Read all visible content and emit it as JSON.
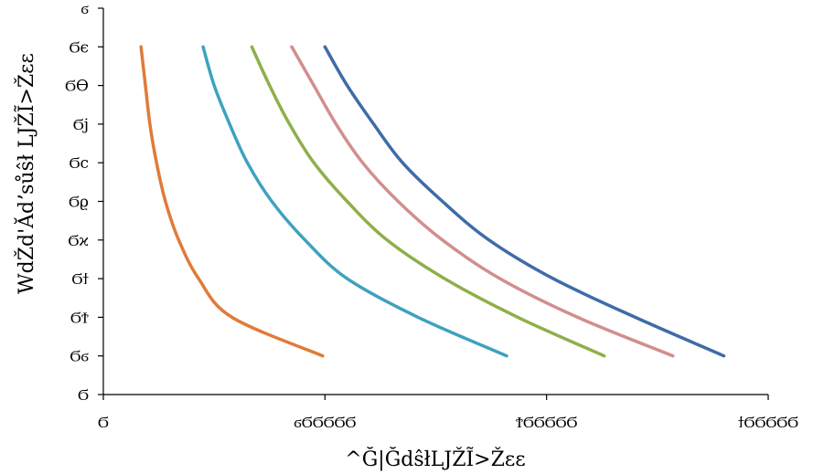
{
  "chart_data": {
    "type": "line",
    "xlabel": "^Ğ|ĞdŝłLJŽĨ>Žɛɛ",
    "ylabel": "WdŽd'Ădʼsůŝł LJŽĨ>Žɛɛ",
    "xlim": [
      0,
      3
    ],
    "ylim": [
      0,
      1
    ],
    "grid": false,
    "legend": "none",
    "x_tick_values": [
      0,
      1,
      2,
      3
    ],
    "x_tick_labels": [
      "Ϭ",
      "ϭϬϬϬϬϬ",
      "ϮϬϬϬϬϬ",
      "ϯϬϬϬϬϬ"
    ],
    "y_tick_values": [
      0,
      0.1,
      0.2,
      0.3,
      0.4,
      0.5,
      0.6,
      0.7,
      0.8,
      0.9,
      1.0
    ],
    "y_tick_labels": [
      "Ϭ",
      "Ϭϭ",
      "ϬϮ",
      "Ϭϯ",
      "Ϭϰ",
      "Ϭϱ",
      "Ϭϲ",
      "Ϭϳ",
      "Ϭϴ",
      "Ϭϵ",
      "ϭ"
    ],
    "series": [
      {
        "color": "#E07B39",
        "points": [
          [
            0.17,
            0.9
          ],
          [
            0.19,
            0.8
          ],
          [
            0.21,
            0.7
          ],
          [
            0.24,
            0.6
          ],
          [
            0.28,
            0.5
          ],
          [
            0.34,
            0.4
          ],
          [
            0.43,
            0.3
          ],
          [
            0.58,
            0.2
          ],
          [
            0.99,
            0.1
          ]
        ]
      },
      {
        "color": "#3EA2BF",
        "points": [
          [
            0.45,
            0.9
          ],
          [
            0.5,
            0.8
          ],
          [
            0.57,
            0.7
          ],
          [
            0.65,
            0.6
          ],
          [
            0.76,
            0.5
          ],
          [
            0.91,
            0.4
          ],
          [
            1.1,
            0.3
          ],
          [
            1.42,
            0.2
          ],
          [
            1.82,
            0.1
          ]
        ]
      },
      {
        "color": "#8FAF4A",
        "points": [
          [
            0.67,
            0.9
          ],
          [
            0.75,
            0.8
          ],
          [
            0.84,
            0.7
          ],
          [
            0.95,
            0.6
          ],
          [
            1.1,
            0.5
          ],
          [
            1.28,
            0.4
          ],
          [
            1.54,
            0.3
          ],
          [
            1.87,
            0.2
          ],
          [
            2.26,
            0.1
          ]
        ]
      },
      {
        "color": "#D28E8E",
        "points": [
          [
            0.85,
            0.9
          ],
          [
            0.95,
            0.8
          ],
          [
            1.05,
            0.7
          ],
          [
            1.17,
            0.6
          ],
          [
            1.33,
            0.5
          ],
          [
            1.53,
            0.4
          ],
          [
            1.79,
            0.3
          ],
          [
            2.14,
            0.2
          ],
          [
            2.57,
            0.1
          ]
        ]
      },
      {
        "color": "#3F6CA8",
        "points": [
          [
            1.0,
            0.9
          ],
          [
            1.1,
            0.8
          ],
          [
            1.22,
            0.7
          ],
          [
            1.35,
            0.6
          ],
          [
            1.53,
            0.5
          ],
          [
            1.74,
            0.4
          ],
          [
            2.03,
            0.3
          ],
          [
            2.4,
            0.2
          ],
          [
            2.8,
            0.1
          ]
        ]
      }
    ]
  }
}
